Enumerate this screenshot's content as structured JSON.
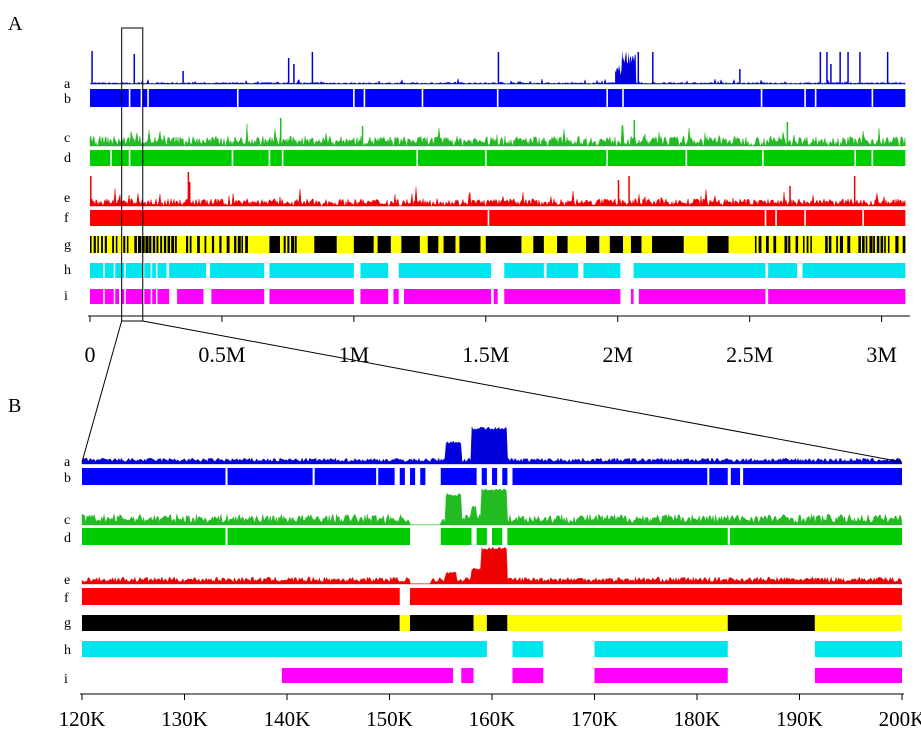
{
  "panels": [
    {
      "letter": "A",
      "track_labels": [
        "a",
        "b",
        "c",
        "d",
        "e",
        "f",
        "g",
        "h",
        "i"
      ],
      "x_ticks": [
        "0",
        "0.5M",
        "1M",
        "1.5M",
        "2M",
        "2.5M",
        "3M"
      ],
      "x_tick_values": [
        0,
        500000,
        1000000,
        1500000,
        2000000,
        2500000,
        3000000
      ],
      "xlim": [
        0,
        3100000
      ]
    },
    {
      "letter": "B",
      "track_labels": [
        "a",
        "b",
        "c",
        "d",
        "e",
        "f",
        "g",
        "h",
        "i"
      ],
      "x_ticks": [
        "120K",
        "130K",
        "140K",
        "150K",
        "160K",
        "170K",
        "180K",
        "190K",
        "200K"
      ],
      "x_tick_values": [
        120000,
        130000,
        140000,
        150000,
        160000,
        170000,
        180000,
        190000,
        200000
      ],
      "xlim": [
        120000,
        200000
      ]
    }
  ],
  "colors": {
    "a": "#0000dd",
    "b": "#0000ff",
    "c": "#22bb22",
    "d": "#00cc00",
    "e": "#ee0000",
    "f": "#ff0000",
    "g_dark": "#000000",
    "g_light": "#ffff00",
    "h": "#00e5ee",
    "i": "#ff00ff"
  },
  "chart_data": [
    {
      "type": "track",
      "panel": "A",
      "zoom_window_kb": [
        120,
        200
      ],
      "tracks": {
        "b_gaps_kb": [
          150,
          195,
          220,
          560,
          1000,
          1040,
          1260,
          1545,
          1960,
          2020,
          2545,
          2710,
          2750,
          2965
        ],
        "d_gaps_kb": [
          80,
          150,
          540,
          680,
          730,
          1240,
          1500,
          1960,
          2260,
          2550,
          2900,
          2965
        ],
        "f_gaps_kb": [
          1510,
          2560,
          2600,
          2710,
          2930
        ],
        "g_segments_kb": [
          [
            0,
            600,
            "alt"
          ],
          [
            600,
            680,
            "light"
          ],
          [
            680,
            720,
            "dark"
          ],
          [
            720,
            790,
            "alt"
          ],
          [
            790,
            850,
            "light"
          ],
          [
            850,
            935,
            "dark"
          ],
          [
            935,
            1000,
            "light"
          ],
          [
            1000,
            1075,
            "dark"
          ],
          [
            1075,
            1090,
            "light"
          ],
          [
            1090,
            1140,
            "dark"
          ],
          [
            1140,
            1180,
            "light"
          ],
          [
            1180,
            1250,
            "dark"
          ],
          [
            1250,
            1280,
            "light"
          ],
          [
            1280,
            1320,
            "dark"
          ],
          [
            1320,
            1340,
            "light"
          ],
          [
            1340,
            1385,
            "dark"
          ],
          [
            1385,
            1400,
            "light"
          ],
          [
            1400,
            1480,
            "dark"
          ],
          [
            1480,
            1500,
            "light"
          ],
          [
            1500,
            1635,
            "dark"
          ],
          [
            1635,
            1680,
            "light"
          ],
          [
            1680,
            1720,
            "dark"
          ],
          [
            1720,
            1770,
            "light"
          ],
          [
            1770,
            1810,
            "dark"
          ],
          [
            1810,
            1880,
            "light"
          ],
          [
            1880,
            1930,
            "dark"
          ],
          [
            1930,
            1970,
            "light"
          ],
          [
            1970,
            2020,
            "dark"
          ],
          [
            2020,
            2050,
            "light"
          ],
          [
            2050,
            2090,
            "dark"
          ],
          [
            2090,
            2130,
            "light"
          ],
          [
            2130,
            2250,
            "dark"
          ],
          [
            2250,
            2340,
            "light"
          ],
          [
            2340,
            2420,
            "dark"
          ],
          [
            2420,
            2520,
            "light"
          ],
          [
            2520,
            3090,
            "alt"
          ]
        ],
        "h_segments_kb": [
          [
            0,
            290
          ],
          [
            300,
            440
          ],
          [
            455,
            660
          ],
          [
            680,
            1000
          ],
          [
            1025,
            1130
          ],
          [
            1170,
            1520
          ],
          [
            1570,
            1720
          ],
          [
            1730,
            1850
          ],
          [
            1870,
            2010
          ],
          [
            2060,
            2560
          ],
          [
            2570,
            2680
          ],
          [
            2700,
            3090
          ]
        ],
        "i_segments_kb": [
          [
            0,
            110
          ],
          [
            120,
            300
          ],
          [
            330,
            430
          ],
          [
            460,
            660
          ],
          [
            680,
            1000
          ],
          [
            1025,
            1130
          ],
          [
            1150,
            1170
          ],
          [
            1190,
            1520
          ],
          [
            1530,
            1545
          ],
          [
            1570,
            2010
          ],
          [
            2050,
            2060
          ],
          [
            2080,
            2560
          ],
          [
            2570,
            3090
          ]
        ]
      }
    },
    {
      "type": "track",
      "panel": "B",
      "tracks": {
        "a_peaks_kb": [
          [
            155.5,
            157,
            0.6
          ],
          [
            158,
            161.5,
            1.0
          ]
        ],
        "b_segments_kb": [
          [
            120,
            134
          ],
          [
            134.2,
            142.5
          ],
          [
            142.7,
            148.7
          ],
          [
            148.9,
            150.5
          ],
          [
            151,
            151.5
          ],
          [
            152,
            152.5
          ],
          [
            153,
            153.5
          ],
          [
            155,
            158.5
          ],
          [
            159,
            159.5
          ],
          [
            160,
            160.5
          ],
          [
            161,
            161.5
          ],
          [
            162,
            181
          ],
          [
            181.2,
            183
          ],
          [
            183.3,
            184.2
          ],
          [
            184.5,
            200
          ]
        ],
        "c_peaks_kb": [
          [
            155.5,
            157,
            0.85
          ],
          [
            158,
            158.5,
            0.5
          ],
          [
            159,
            161.5,
            1.0
          ]
        ],
        "d_segments_kb": [
          [
            120,
            134
          ],
          [
            134.2,
            152
          ],
          [
            155,
            158
          ],
          [
            158.5,
            159.5
          ],
          [
            160,
            161
          ],
          [
            161.5,
            183
          ],
          [
            183.2,
            200
          ]
        ],
        "e_peaks_kb": [
          [
            155.5,
            156.5,
            0.3
          ],
          [
            158,
            159,
            0.4
          ],
          [
            159,
            161.5,
            1.0
          ]
        ],
        "f_segments_kb": [
          [
            120,
            151
          ],
          [
            152,
            200
          ]
        ],
        "g_segments_kb": [
          [
            120,
            151,
            "dark"
          ],
          [
            151,
            152,
            "light"
          ],
          [
            152,
            158.2,
            "dark"
          ],
          [
            158.2,
            159.5,
            "light"
          ],
          [
            159.5,
            161.5,
            "dark"
          ],
          [
            161.5,
            183,
            "light"
          ],
          [
            183,
            191.5,
            "dark"
          ],
          [
            191.5,
            200,
            "light"
          ]
        ],
        "h_segments_kb": [
          [
            120,
            159.5
          ],
          [
            162,
            165
          ],
          [
            170,
            183
          ],
          [
            191.5,
            200
          ]
        ],
        "i_segments_kb": [
          [
            139.5,
            156.2
          ],
          [
            157,
            158.2
          ],
          [
            162,
            165
          ],
          [
            170,
            183
          ],
          [
            191.5,
            200
          ]
        ]
      }
    }
  ]
}
